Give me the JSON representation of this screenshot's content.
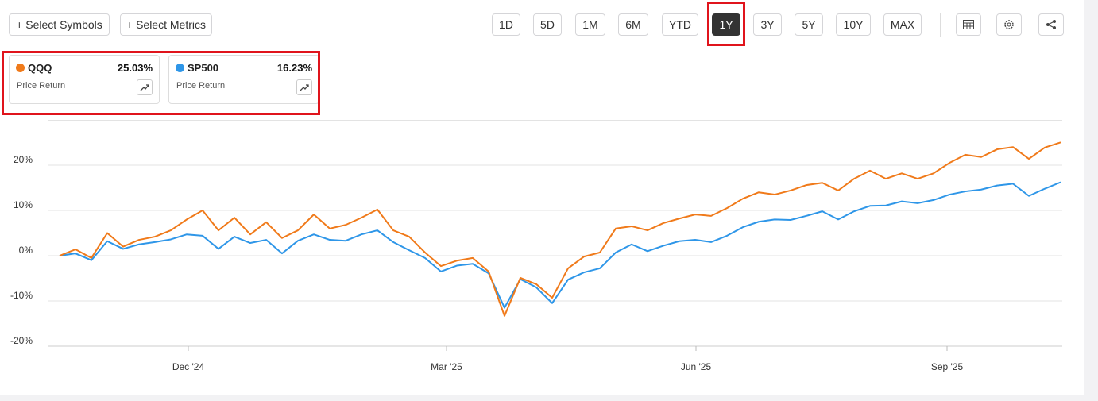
{
  "toolbar": {
    "buttons": [
      "+ Select Symbols",
      "+ Select Metrics"
    ],
    "ranges": [
      "1D",
      "5D",
      "1M",
      "6M",
      "YTD",
      "1Y",
      "3Y",
      "5Y",
      "10Y",
      "MAX"
    ],
    "selected": "1Y"
  },
  "cards": [
    {
      "return": "25.03%",
      "metric": "Price Return"
    },
    {
      "return": "16.23%",
      "metric": "Price Return"
    }
  ],
  "chart_data": {
    "type": "line",
    "series": [
      {
        "name": "QQQ",
        "color": "#f07a1a",
        "values": [
          0,
          1.4,
          -0.5,
          5,
          2,
          3.5,
          4.2,
          5.6,
          8,
          10,
          5.6,
          8.4,
          4.7,
          7.4,
          3.9,
          5.6,
          9.1,
          6,
          6.8,
          8.4,
          10.2,
          5.6,
          4.2,
          0.7,
          -2.3,
          -1.1,
          -0.5,
          -3.5,
          -13.3,
          -4.9,
          -6.3,
          -9.3,
          -2.8,
          -0.2,
          0.7,
          6,
          6.5,
          5.6,
          7.2,
          8.2,
          9.1,
          8.8,
          10.5,
          12.6,
          14,
          13.5,
          14.4,
          15.6,
          16.1,
          14.4,
          17,
          18.8,
          17,
          18.2,
          17,
          18.2,
          20.5,
          22.3,
          21.8,
          23.5,
          24,
          21.4,
          23.9,
          25.03
        ]
      },
      {
        "name": "SP500",
        "color": "#2e96e8",
        "values": [
          0,
          0.5,
          -1,
          3.2,
          1.5,
          2.5,
          3,
          3.6,
          4.7,
          4.4,
          1.5,
          4.2,
          2.8,
          3.5,
          0.5,
          3.3,
          4.7,
          3.5,
          3.3,
          4.7,
          5.6,
          3,
          1.2,
          -0.5,
          -3.5,
          -2.2,
          -1.8,
          -3.9,
          -11.5,
          -5.2,
          -7,
          -10.5,
          -5.3,
          -3.7,
          -2.8,
          0.7,
          2.5,
          1,
          2.2,
          3.2,
          3.5,
          3,
          4.4,
          6.3,
          7.5,
          8,
          7.9,
          8.8,
          9.8,
          8,
          9.8,
          11,
          11.1,
          12,
          11.6,
          12.3,
          13.5,
          14.2,
          14.6,
          15.5,
          15.9,
          13.2,
          14.8,
          16.23
        ]
      }
    ],
    "xlim": [
      0,
      63
    ],
    "xticks": [
      {
        "value": 8.1,
        "label": "Dec '24"
      },
      {
        "value": 24.35,
        "label": "Mar '25"
      },
      {
        "value": 40.05,
        "label": "Jun '25"
      },
      {
        "value": 55.85,
        "label": "Sep '25"
      }
    ],
    "ylim": [
      -20,
      30
    ],
    "yticks": [
      {
        "value": -20,
        "label": "-20%"
      },
      {
        "value": -10,
        "label": "-10%"
      },
      {
        "value": 0,
        "label": "0%"
      },
      {
        "value": 10,
        "label": "10%"
      },
      {
        "value": 20,
        "label": "20%"
      }
    ],
    "grid": true
  }
}
